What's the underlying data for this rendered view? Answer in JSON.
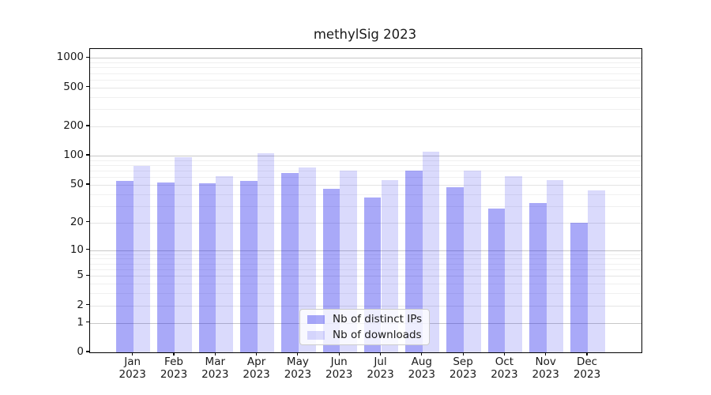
{
  "chart_data": {
    "type": "bar",
    "title": "methylSig 2023",
    "categories": [
      "Jan 2023",
      "Feb 2023",
      "Mar 2023",
      "Apr 2023",
      "May 2023",
      "Jun 2023",
      "Jul 2023",
      "Aug 2023",
      "Sep 2023",
      "Oct 2023",
      "Nov 2023",
      "Dec 2023"
    ],
    "series": [
      {
        "name": "Nb of distinct IPs",
        "color": "#1616eb",
        "alpha": 0.37,
        "values": [
          55,
          53,
          52,
          55,
          66,
          45,
          37,
          70,
          47,
          28,
          32,
          20
        ]
      },
      {
        "name": "Nb of downloads",
        "color": "#1616eb",
        "alpha": 0.16,
        "values": [
          78,
          97,
          61,
          105,
          76,
          70,
          56,
          110,
          70,
          62,
          56,
          44
        ]
      }
    ],
    "xlabel": "",
    "ylabel": "",
    "yscale": "log1p",
    "yticks": [
      0,
      1,
      2,
      5,
      10,
      20,
      50,
      100,
      200,
      500,
      1000
    ],
    "ylim": [
      0,
      1230
    ],
    "grid": true,
    "legend_position": "lower center"
  }
}
